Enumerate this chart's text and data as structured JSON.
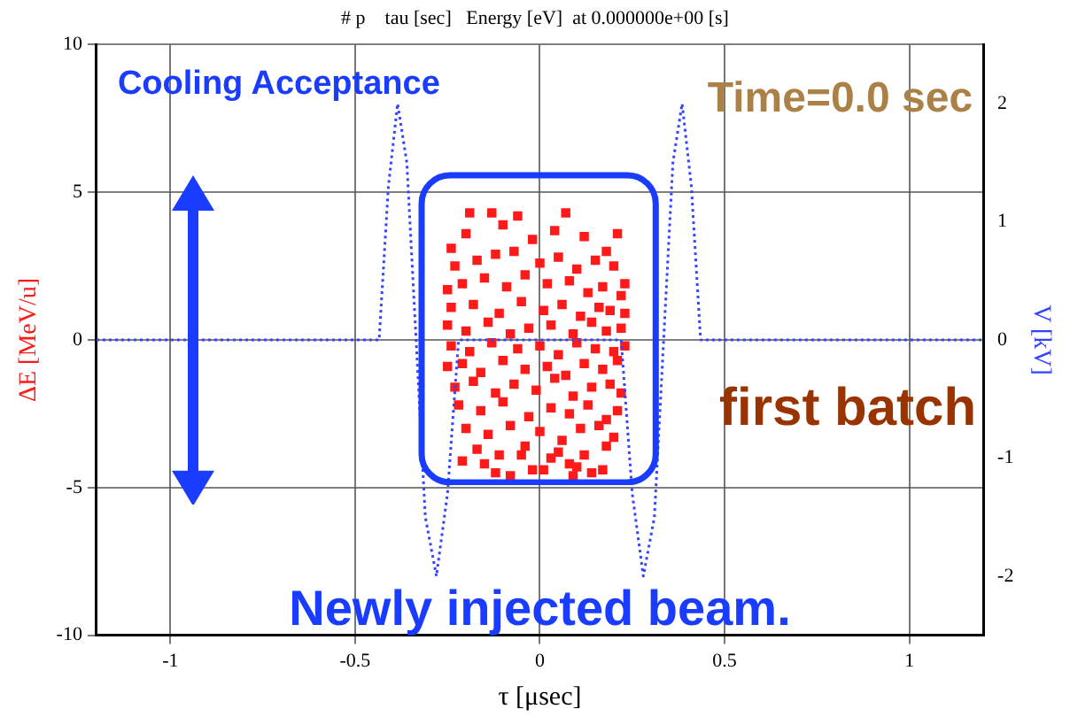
{
  "chart_data": {
    "type": "scatter",
    "title": "# p    tau [sec]   Energy [eV]  at 0.000000e+00 [s]",
    "xlabel": "τ [μsec]",
    "ylabel": "ΔE [MeV/u]",
    "y2label": "V [kV]",
    "xlim": [
      -1.2,
      1.2
    ],
    "xticks": [
      -1,
      -0.5,
      0,
      0.5,
      1
    ],
    "ylim": [
      -10,
      10
    ],
    "yticks": [
      -10,
      -5,
      0,
      5,
      10
    ],
    "y2lim": [
      -2.5,
      2.5
    ],
    "y2ticks": [
      -2,
      -1,
      0,
      1,
      2
    ],
    "grid": true,
    "legend": false,
    "marker": "square",
    "annotations": [
      "Cooling Acceptance",
      "Time=0.0 sec",
      "first batch",
      "Newly injected beam."
    ],
    "series": [
      {
        "type": "scatter",
        "color": "#ff1a1a",
        "x": [
          -0.19,
          -0.13,
          -0.06,
          0.07,
          -0.24,
          -0.2,
          -0.1,
          -0.02,
          0.04,
          0.12,
          0.18,
          0.21,
          -0.23,
          -0.17,
          -0.12,
          -0.07,
          0.0,
          0.05,
          0.1,
          0.15,
          0.2,
          0.23,
          -0.25,
          -0.21,
          -0.15,
          -0.09,
          -0.04,
          0.02,
          0.08,
          0.13,
          0.17,
          0.22,
          -0.24,
          -0.18,
          -0.11,
          -0.05,
          0.01,
          0.06,
          0.11,
          0.16,
          0.19,
          0.23,
          -0.25,
          -0.2,
          -0.14,
          -0.08,
          -0.03,
          0.03,
          0.09,
          0.14,
          0.18,
          0.22,
          -0.24,
          -0.19,
          -0.13,
          -0.06,
          0.0,
          0.05,
          0.1,
          0.15,
          0.2,
          0.23,
          -0.25,
          -0.21,
          -0.16,
          -0.1,
          -0.04,
          0.02,
          0.07,
          0.12,
          0.17,
          0.21,
          -0.23,
          -0.18,
          -0.12,
          -0.07,
          -0.01,
          0.04,
          0.09,
          0.14,
          0.19,
          0.22,
          -0.22,
          -0.16,
          -0.1,
          -0.03,
          0.03,
          0.08,
          0.13,
          0.18,
          0.21,
          -0.2,
          -0.14,
          -0.08,
          0.0,
          0.06,
          0.11,
          0.16,
          0.2,
          -0.17,
          -0.11,
          -0.04,
          0.05,
          0.12,
          0.18,
          -0.21,
          -0.15,
          -0.05,
          0.03,
          0.1,
          0.17,
          -0.12,
          -0.02,
          0.08,
          0.14,
          -0.08,
          0.01,
          0.09
        ],
        "values": [
          4.3,
          4.3,
          4.2,
          4.3,
          3.1,
          3.6,
          3.9,
          3.4,
          3.7,
          3.5,
          3.0,
          3.6,
          2.5,
          2.7,
          2.9,
          3.0,
          2.6,
          2.8,
          2.4,
          2.7,
          2.5,
          1.9,
          1.7,
          1.9,
          2.1,
          1.8,
          2.2,
          1.9,
          2.0,
          1.6,
          1.8,
          1.5,
          1.1,
          1.2,
          0.9,
          1.3,
          1.0,
          1.2,
          0.8,
          1.1,
          1.0,
          0.9,
          0.5,
          0.3,
          0.6,
          0.2,
          0.4,
          0.5,
          0.2,
          0.6,
          0.3,
          0.4,
          -0.2,
          -0.4,
          -0.1,
          -0.3,
          -0.2,
          -0.5,
          -0.1,
          -0.3,
          -0.4,
          -0.2,
          -0.9,
          -0.8,
          -1.1,
          -0.7,
          -1.0,
          -0.9,
          -1.2,
          -0.8,
          -1.0,
          -0.7,
          -1.6,
          -1.4,
          -1.8,
          -1.5,
          -1.7,
          -1.3,
          -1.9,
          -1.6,
          -1.5,
          -1.8,
          -2.2,
          -2.4,
          -2.1,
          -2.6,
          -2.3,
          -2.5,
          -2.2,
          -2.7,
          -2.4,
          -3.0,
          -3.2,
          -2.9,
          -3.1,
          -3.4,
          -3.0,
          -2.9,
          -3.3,
          -3.7,
          -3.9,
          -3.6,
          -3.8,
          -3.9,
          -3.6,
          -4.1,
          -4.2,
          -3.9,
          -4.0,
          -4.3,
          -4.4,
          -4.5,
          -4.4,
          -4.2,
          -4.5,
          -4.6,
          -4.4,
          -4.6
        ]
      },
      {
        "type": "line",
        "axis": "y2",
        "color": "#3344ff",
        "line_style": "dotted",
        "marker": "none",
        "x": [
          -1.2,
          -0.435,
          -0.41,
          -0.385,
          -0.36,
          -0.335,
          -0.31,
          -0.28,
          -0.25,
          -0.22,
          0.22,
          0.25,
          0.28,
          0.31,
          0.335,
          0.36,
          0.385,
          0.41,
          0.435,
          1.2
        ],
        "values": [
          0,
          0,
          1.3,
          2,
          1.5,
          0,
          -1.5,
          -2,
          -1.3,
          0,
          0,
          -1.3,
          -2,
          -1.5,
          0,
          1.5,
          2,
          1.3,
          0,
          0
        ]
      }
    ]
  }
}
